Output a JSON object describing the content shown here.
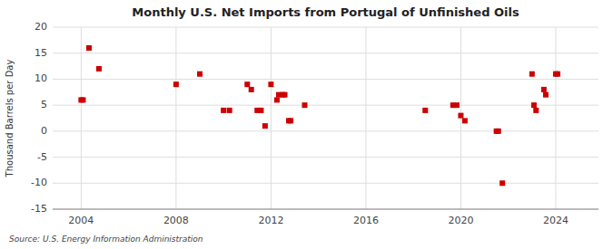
{
  "chart_data": {
    "type": "scatter",
    "title": "Monthly U.S. Net Imports from Portugal of Unfinished Oils",
    "y_label": "Thousand Barrels per Day",
    "annotations": [
      "Source: U.S. Energy Information Administration"
    ],
    "color": "#cc0000",
    "marker": "square",
    "grid": true,
    "xlim": [
      2002.8,
      2025.8
    ],
    "ylim": [
      -15,
      20
    ],
    "xticks": [
      2004,
      2008,
      2012,
      2016,
      2020,
      2024
    ],
    "yticks": [
      -15,
      -10,
      -5,
      0,
      5,
      10,
      15,
      20
    ],
    "x": [
      2004.0,
      2004.08,
      2004.33,
      2004.75,
      2008.0,
      2009.0,
      2010.0,
      2010.25,
      2011.0,
      2011.17,
      2011.42,
      2011.58,
      2011.75,
      2012.0,
      2012.25,
      2012.33,
      2012.5,
      2012.58,
      2012.75,
      2012.83,
      2013.42,
      2018.5,
      2019.67,
      2019.83,
      2020.0,
      2020.17,
      2021.5,
      2021.58,
      2021.75,
      2023.0,
      2023.08,
      2023.17,
      2023.5,
      2023.58,
      2024.0,
      2024.08
    ],
    "values": [
      6,
      6,
      16,
      12,
      9,
      11,
      4,
      4,
      9,
      8,
      4,
      4,
      1,
      9,
      6,
      7,
      7,
      7,
      2,
      2,
      5,
      4,
      5,
      5,
      3,
      2,
      0,
      0,
      -10,
      11,
      5,
      4,
      8,
      7,
      11,
      11
    ]
  }
}
